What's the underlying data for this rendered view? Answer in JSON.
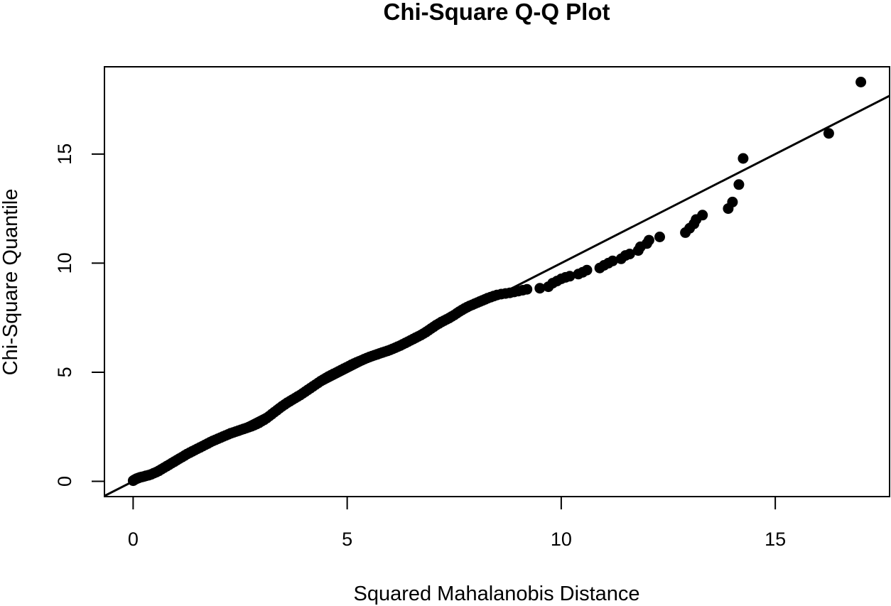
{
  "chart_data": {
    "type": "scatter",
    "title": "Chi-Square Q-Q Plot",
    "xlabel": "Squared Mahalanobis Distance",
    "ylabel": "Chi-Square Quantile",
    "xlim": [
      -0.67,
      17.67
    ],
    "ylim": [
      -0.7,
      19.0
    ],
    "xticks": [
      0,
      5,
      10,
      15
    ],
    "yticks": [
      0,
      5,
      10,
      15
    ],
    "grid": false,
    "reference_line": {
      "intercept": 0,
      "slope": 1
    },
    "point_color": "#000000",
    "line_color": "#000000",
    "series": [
      {
        "points": [
          [
            0.0,
            0.03
          ],
          [
            0.02,
            0.06
          ],
          [
            0.05,
            0.09
          ],
          [
            0.08,
            0.12
          ],
          [
            0.12,
            0.15
          ],
          [
            0.16,
            0.18
          ],
          [
            0.2,
            0.2
          ],
          [
            0.25,
            0.22
          ],
          [
            0.3,
            0.25
          ],
          [
            0.36,
            0.28
          ],
          [
            0.42,
            0.32
          ],
          [
            0.48,
            0.37
          ],
          [
            0.54,
            0.42
          ],
          [
            0.6,
            0.48
          ],
          [
            0.66,
            0.55
          ],
          [
            0.72,
            0.62
          ],
          [
            0.78,
            0.69
          ],
          [
            0.84,
            0.76
          ],
          [
            0.9,
            0.83
          ],
          [
            0.96,
            0.9
          ],
          [
            1.02,
            0.97
          ],
          [
            1.08,
            1.04
          ],
          [
            1.14,
            1.11
          ],
          [
            1.2,
            1.18
          ],
          [
            1.26,
            1.25
          ],
          [
            1.32,
            1.31
          ],
          [
            1.38,
            1.37
          ],
          [
            1.44,
            1.43
          ],
          [
            1.5,
            1.49
          ],
          [
            1.56,
            1.55
          ],
          [
            1.62,
            1.61
          ],
          [
            1.68,
            1.67
          ],
          [
            1.74,
            1.73
          ],
          [
            1.8,
            1.79
          ],
          [
            1.86,
            1.85
          ],
          [
            1.92,
            1.9
          ],
          [
            1.98,
            1.95
          ],
          [
            2.04,
            2.0
          ],
          [
            2.1,
            2.05
          ],
          [
            2.16,
            2.1
          ],
          [
            2.22,
            2.15
          ],
          [
            2.28,
            2.2
          ],
          [
            2.34,
            2.24
          ],
          [
            2.4,
            2.28
          ],
          [
            2.46,
            2.32
          ],
          [
            2.52,
            2.36
          ],
          [
            2.58,
            2.4
          ],
          [
            2.64,
            2.44
          ],
          [
            2.7,
            2.48
          ],
          [
            2.76,
            2.52
          ],
          [
            2.82,
            2.57
          ],
          [
            2.88,
            2.62
          ],
          [
            2.94,
            2.68
          ],
          [
            3.0,
            2.75
          ],
          [
            3.06,
            2.82
          ],
          [
            3.12,
            2.9
          ],
          [
            3.18,
            2.99
          ],
          [
            3.24,
            3.08
          ],
          [
            3.3,
            3.17
          ],
          [
            3.36,
            3.26
          ],
          [
            3.42,
            3.35
          ],
          [
            3.48,
            3.44
          ],
          [
            3.54,
            3.52
          ],
          [
            3.6,
            3.6
          ],
          [
            3.66,
            3.67
          ],
          [
            3.72,
            3.74
          ],
          [
            3.78,
            3.81
          ],
          [
            3.84,
            3.88
          ],
          [
            3.9,
            3.95
          ],
          [
            3.96,
            4.03
          ],
          [
            4.02,
            4.11
          ],
          [
            4.08,
            4.19
          ],
          [
            4.14,
            4.27
          ],
          [
            4.2,
            4.35
          ],
          [
            4.26,
            4.43
          ],
          [
            4.32,
            4.51
          ],
          [
            4.38,
            4.59
          ],
          [
            4.44,
            4.66
          ],
          [
            4.5,
            4.73
          ],
          [
            4.56,
            4.8
          ],
          [
            4.62,
            4.86
          ],
          [
            4.68,
            4.92
          ],
          [
            4.74,
            4.98
          ],
          [
            4.8,
            5.04
          ],
          [
            4.86,
            5.1
          ],
          [
            4.92,
            5.16
          ],
          [
            4.98,
            5.22
          ],
          [
            5.04,
            5.28
          ],
          [
            5.1,
            5.34
          ],
          [
            5.16,
            5.4
          ],
          [
            5.22,
            5.45
          ],
          [
            5.28,
            5.5
          ],
          [
            5.34,
            5.55
          ],
          [
            5.4,
            5.6
          ],
          [
            5.46,
            5.65
          ],
          [
            5.52,
            5.7
          ],
          [
            5.58,
            5.74
          ],
          [
            5.64,
            5.78
          ],
          [
            5.7,
            5.82
          ],
          [
            5.76,
            5.86
          ],
          [
            5.82,
            5.9
          ],
          [
            5.88,
            5.94
          ],
          [
            5.94,
            5.98
          ],
          [
            6.0,
            6.02
          ],
          [
            6.06,
            6.07
          ],
          [
            6.12,
            6.12
          ],
          [
            6.18,
            6.17
          ],
          [
            6.24,
            6.22
          ],
          [
            6.3,
            6.28
          ],
          [
            6.36,
            6.34
          ],
          [
            6.42,
            6.4
          ],
          [
            6.48,
            6.46
          ],
          [
            6.54,
            6.52
          ],
          [
            6.6,
            6.58
          ],
          [
            6.66,
            6.64
          ],
          [
            6.72,
            6.7
          ],
          [
            6.78,
            6.77
          ],
          [
            6.84,
            6.84
          ],
          [
            6.9,
            6.92
          ],
          [
            6.96,
            7.0
          ],
          [
            7.02,
            7.08
          ],
          [
            7.08,
            7.16
          ],
          [
            7.14,
            7.23
          ],
          [
            7.2,
            7.3
          ],
          [
            7.26,
            7.36
          ],
          [
            7.32,
            7.42
          ],
          [
            7.38,
            7.48
          ],
          [
            7.44,
            7.55
          ],
          [
            7.5,
            7.62
          ],
          [
            7.56,
            7.7
          ],
          [
            7.62,
            7.78
          ],
          [
            7.68,
            7.85
          ],
          [
            7.74,
            7.92
          ],
          [
            7.8,
            7.98
          ],
          [
            7.86,
            8.04
          ],
          [
            7.92,
            8.09
          ],
          [
            7.98,
            8.14
          ],
          [
            8.04,
            8.19
          ],
          [
            8.1,
            8.24
          ],
          [
            8.16,
            8.29
          ],
          [
            8.22,
            8.34
          ],
          [
            8.28,
            8.39
          ],
          [
            8.35,
            8.44
          ],
          [
            8.42,
            8.49
          ],
          [
            8.5,
            8.54
          ],
          [
            8.6,
            8.58
          ],
          [
            8.7,
            8.61
          ],
          [
            8.8,
            8.64
          ],
          [
            8.9,
            8.68
          ],
          [
            9.0,
            8.72
          ],
          [
            9.1,
            8.76
          ],
          [
            9.2,
            8.8
          ],
          [
            9.5,
            8.85
          ],
          [
            9.7,
            8.92
          ],
          [
            9.8,
            9.08
          ],
          [
            9.9,
            9.18
          ],
          [
            10.0,
            9.28
          ],
          [
            10.1,
            9.35
          ],
          [
            10.2,
            9.4
          ],
          [
            10.4,
            9.5
          ],
          [
            10.5,
            9.58
          ],
          [
            10.6,
            9.68
          ],
          [
            10.9,
            9.78
          ],
          [
            11.0,
            9.9
          ],
          [
            11.1,
            10.0
          ],
          [
            11.2,
            10.1
          ],
          [
            11.4,
            10.2
          ],
          [
            11.5,
            10.35
          ],
          [
            11.6,
            10.42
          ],
          [
            11.8,
            10.58
          ],
          [
            11.85,
            10.75
          ],
          [
            12.0,
            10.9
          ],
          [
            12.05,
            11.05
          ],
          [
            12.3,
            11.2
          ],
          [
            12.9,
            11.4
          ],
          [
            13.0,
            11.6
          ],
          [
            13.1,
            11.8
          ],
          [
            13.15,
            12.0
          ],
          [
            13.3,
            12.2
          ],
          [
            13.9,
            12.5
          ],
          [
            14.0,
            12.8
          ],
          [
            14.15,
            13.6
          ],
          [
            14.25,
            14.8
          ],
          [
            16.25,
            15.95
          ],
          [
            17.0,
            18.3
          ]
        ]
      }
    ]
  }
}
